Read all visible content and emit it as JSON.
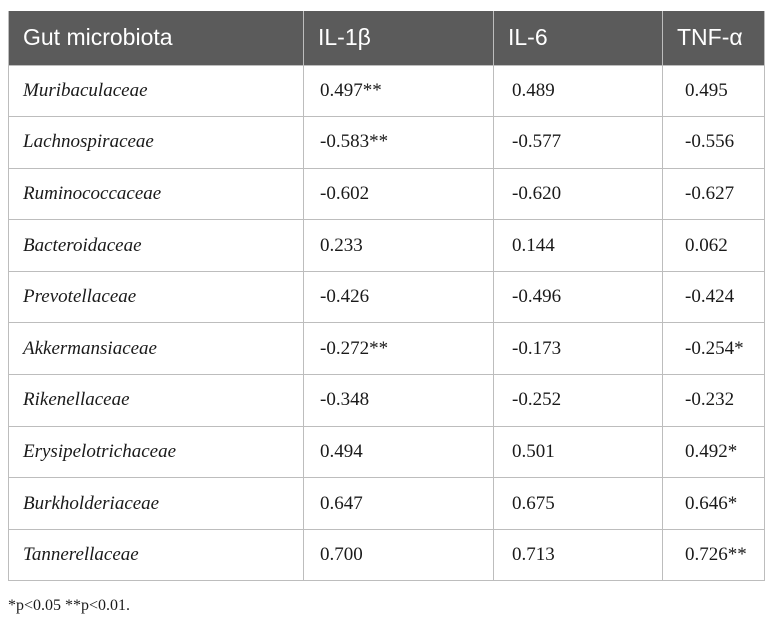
{
  "table": {
    "headers": [
      "Gut microbiota",
      "IL-1β",
      "IL-6",
      "TNF-α"
    ],
    "rows": [
      [
        "Muribaculaceae",
        "0.497**",
        "0.489",
        "0.495"
      ],
      [
        "Lachnospiraceae",
        "-0.583**",
        "-0.577",
        "-0.556"
      ],
      [
        "Ruminococcaceae",
        "-0.602",
        "-0.620",
        "-0.627"
      ],
      [
        "Bacteroidaceae",
        "0.233",
        "0.144",
        "0.062"
      ],
      [
        "Prevotellaceae",
        "-0.426",
        "-0.496",
        "-0.424"
      ],
      [
        "Akkermansiaceae",
        "-0.272**",
        "-0.173",
        "-0.254*"
      ],
      [
        "Rikenellaceae",
        "-0.348",
        "-0.252",
        "-0.232"
      ],
      [
        "Erysipelotrichaceae",
        "0.494",
        "0.501",
        "0.492*"
      ],
      [
        "Burkholderiaceae",
        "0.647",
        "0.675",
        "0.646*"
      ],
      [
        "Tannerellaceae",
        "0.700",
        "0.713",
        "0.726**"
      ]
    ]
  },
  "footnote": "*p<0.05 **p<0.01."
}
